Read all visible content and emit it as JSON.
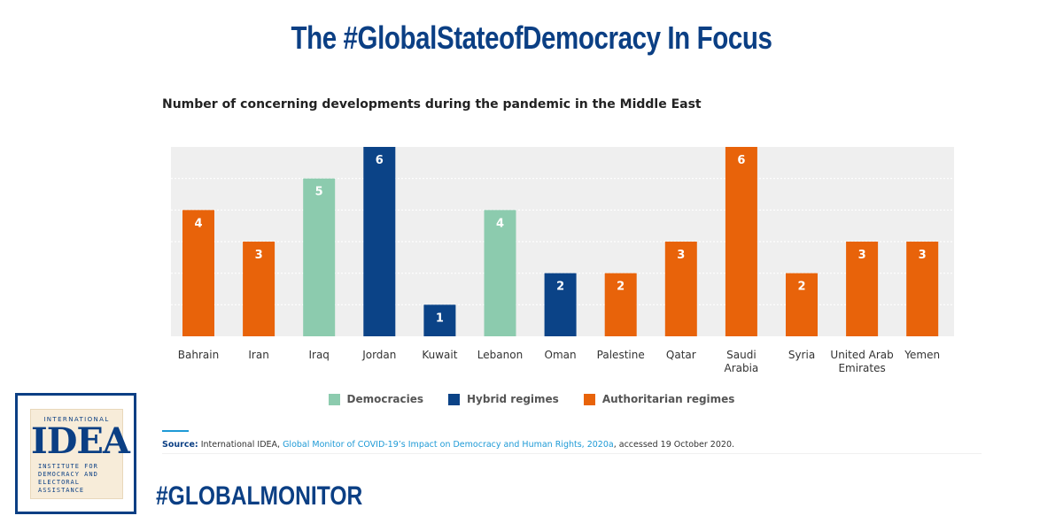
{
  "header": {
    "title": "The #GlobalStateofDemocracy In Focus"
  },
  "chart_data": {
    "type": "bar",
    "title": "Number of concerning developments during the pandemic in the Middle East",
    "categories": [
      [
        "Bahrain"
      ],
      [
        "Iran"
      ],
      [
        "Iraq"
      ],
      [
        "Jordan"
      ],
      [
        "Kuwait"
      ],
      [
        "Lebanon"
      ],
      [
        "Oman"
      ],
      [
        "Palestine"
      ],
      [
        "Qatar"
      ],
      [
        "Saudi",
        "Arabia"
      ],
      [
        "Syria"
      ],
      [
        "United Arab",
        "Emirates"
      ],
      [
        "Yemen"
      ]
    ],
    "values": [
      4,
      3,
      5,
      6,
      1,
      4,
      2,
      2,
      3,
      6,
      2,
      3,
      3
    ],
    "groups": [
      "Authoritarian regimes",
      "Authoritarian regimes",
      "Democracies",
      "Hybrid regimes",
      "Hybrid regimes",
      "Democracies",
      "Hybrid regimes",
      "Authoritarian regimes",
      "Authoritarian regimes",
      "Authoritarian regimes",
      "Authoritarian regimes",
      "Authoritarian regimes",
      "Authoritarian regimes"
    ],
    "ylim": [
      0,
      6
    ],
    "grid": true,
    "legend_position": "bottom",
    "legend": [
      {
        "name": "Democracies",
        "color": "#8ccbae"
      },
      {
        "name": "Hybrid regimes",
        "color": "#0b4387"
      },
      {
        "name": "Authoritarian regimes",
        "color": "#e8630a"
      }
    ]
  },
  "source": {
    "label": "Source:",
    "prefix": "International IDEA,",
    "link_text": "Global Monitor of COVID-19’s Impact on Democracy and Human Rights, 2020a",
    "suffix": ", accessed 19 October 2020."
  },
  "logo": {
    "top": "INTERNATIONAL",
    "mid": "IDEA",
    "lines": [
      "INSTITUTE FOR",
      "DEMOCRACY AND",
      "ELECTORAL",
      "ASSISTANCE"
    ]
  },
  "hashtag": "#GLOBALMONITOR"
}
